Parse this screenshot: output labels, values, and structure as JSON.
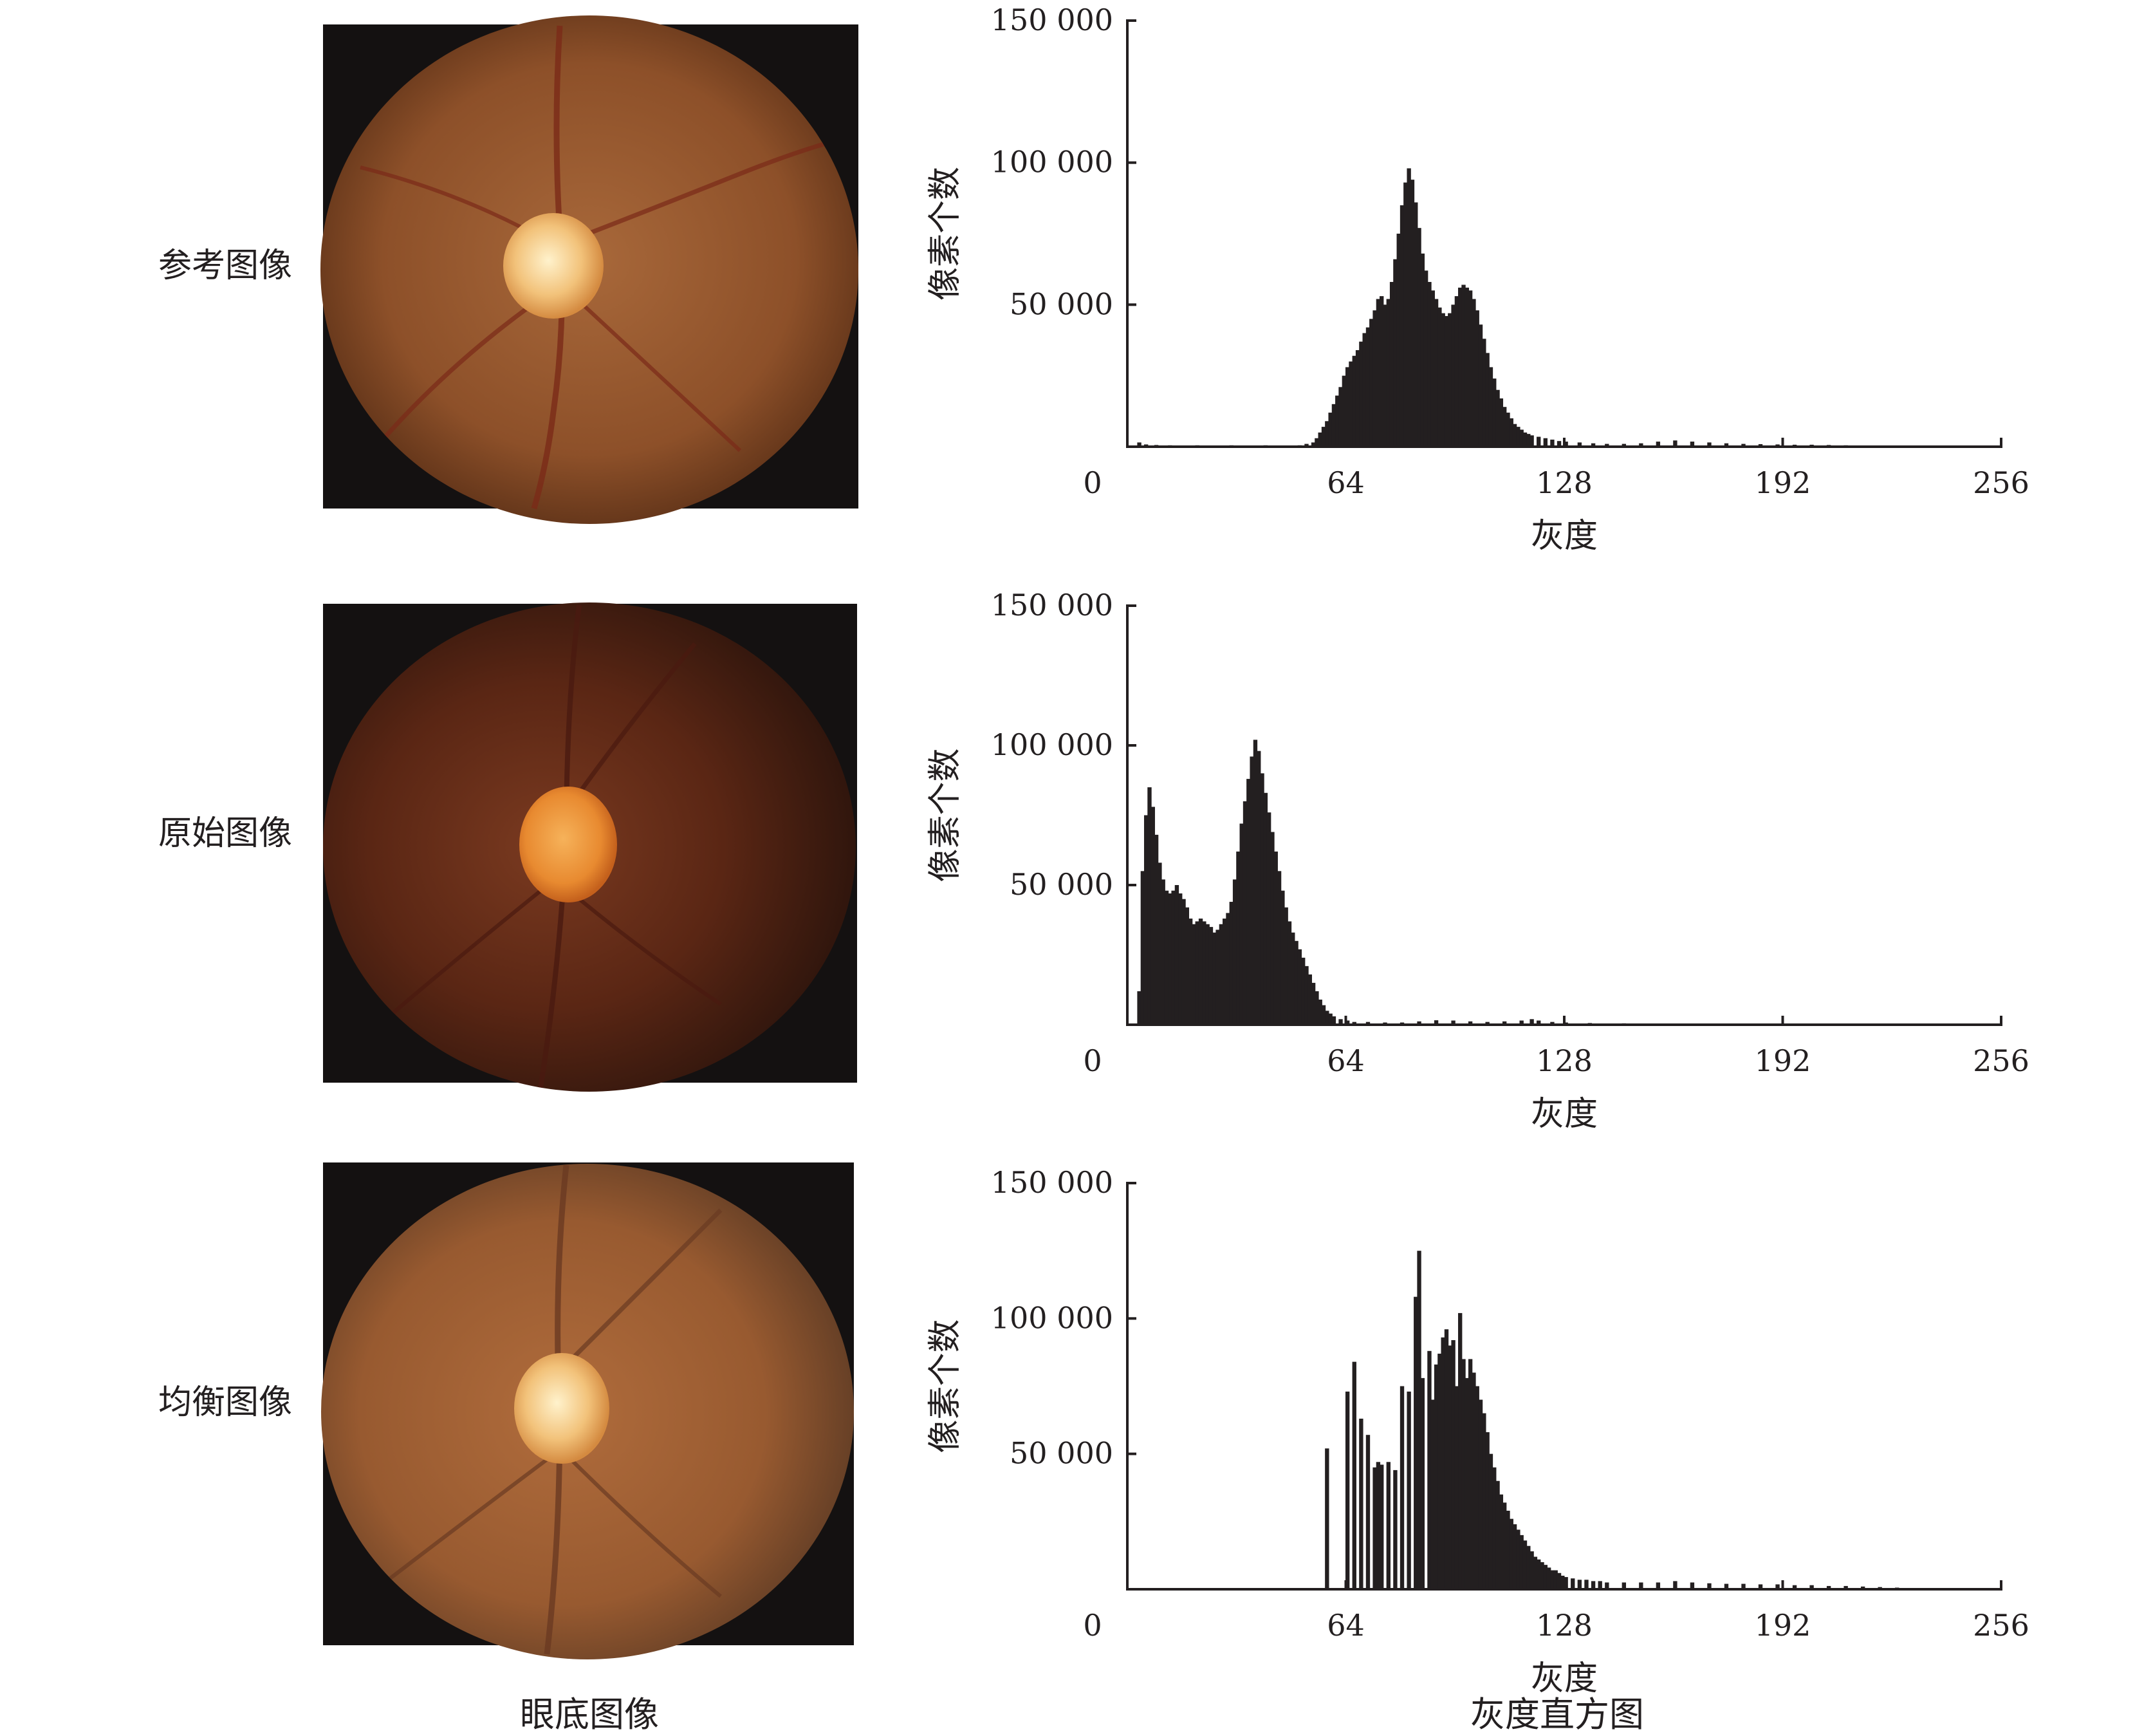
{
  "rows": [
    {
      "label": "参考图像"
    },
    {
      "label": "原始图像"
    },
    {
      "label": "均衡图像"
    }
  ],
  "footer": {
    "left": "眼底图像",
    "right": "灰度直方图"
  },
  "axes": {
    "xlabel": "灰度",
    "ylabel": "像素个数",
    "x_ticks": [
      "0",
      "64",
      "128",
      "192",
      "256"
    ],
    "y_ticks": [
      "50 000",
      "100 000",
      "150 000"
    ]
  },
  "colors": {
    "bar": "#231f20",
    "fundus_background": "#141111",
    "fundus_reference": "#9a5a2c",
    "fundus_original": "#6a2f1a",
    "fundus_equalized": "#a46236",
    "optic_disc": "#f2c27a"
  },
  "chart_data": [
    {
      "type": "bar",
      "title": "",
      "xlabel": "灰度",
      "ylabel": "像素个数",
      "xlim": [
        0,
        256
      ],
      "ylim": [
        0,
        150000
      ],
      "bins": [
        [
          3,
          1500
        ],
        [
          5,
          800
        ],
        [
          8,
          600
        ],
        [
          12,
          500
        ],
        [
          20,
          500
        ],
        [
          30,
          500
        ],
        [
          40,
          500
        ],
        [
          50,
          500
        ],
        [
          52,
          1000
        ],
        [
          54,
          1500
        ],
        [
          55,
          3000
        ],
        [
          56,
          5000
        ],
        [
          57,
          7000
        ],
        [
          58,
          9000
        ],
        [
          59,
          12000
        ],
        [
          60,
          15000
        ],
        [
          61,
          18000
        ],
        [
          62,
          21000
        ],
        [
          63,
          25000
        ],
        [
          64,
          28000
        ],
        [
          65,
          30000
        ],
        [
          66,
          32000
        ],
        [
          67,
          34000
        ],
        [
          68,
          37000
        ],
        [
          69,
          40000
        ],
        [
          70,
          42000
        ],
        [
          71,
          45000
        ],
        [
          72,
          48000
        ],
        [
          73,
          52000
        ],
        [
          74,
          53000
        ],
        [
          75,
          50000
        ],
        [
          76,
          52000
        ],
        [
          77,
          58000
        ],
        [
          78,
          66000
        ],
        [
          79,
          75000
        ],
        [
          80,
          85000
        ],
        [
          81,
          93000
        ],
        [
          82,
          98000
        ],
        [
          83,
          94000
        ],
        [
          84,
          86000
        ],
        [
          85,
          77000
        ],
        [
          86,
          68000
        ],
        [
          87,
          62000
        ],
        [
          88,
          58000
        ],
        [
          89,
          55000
        ],
        [
          90,
          52000
        ],
        [
          91,
          49000
        ],
        [
          92,
          47000
        ],
        [
          93,
          46000
        ],
        [
          94,
          47000
        ],
        [
          95,
          50000
        ],
        [
          96,
          53000
        ],
        [
          97,
          56000
        ],
        [
          98,
          57000
        ],
        [
          99,
          56000
        ],
        [
          100,
          55000
        ],
        [
          101,
          52000
        ],
        [
          102,
          48000
        ],
        [
          103,
          43000
        ],
        [
          104,
          38000
        ],
        [
          105,
          33000
        ],
        [
          106,
          28000
        ],
        [
          107,
          24000
        ],
        [
          108,
          20000
        ],
        [
          109,
          17000
        ],
        [
          110,
          14000
        ],
        [
          111,
          12000
        ],
        [
          112,
          10000
        ],
        [
          113,
          8000
        ],
        [
          114,
          7000
        ],
        [
          115,
          6000
        ],
        [
          116,
          5000
        ],
        [
          117,
          4500
        ],
        [
          118,
          4000
        ],
        [
          120,
          3500
        ],
        [
          122,
          3000
        ],
        [
          124,
          2500
        ],
        [
          126,
          2000
        ],
        [
          128,
          1800
        ],
        [
          132,
          1500
        ],
        [
          136,
          1200
        ],
        [
          140,
          1000
        ],
        [
          145,
          1000
        ],
        [
          150,
          1200
        ],
        [
          155,
          1800
        ],
        [
          160,
          2200
        ],
        [
          165,
          1800
        ],
        [
          170,
          1500
        ],
        [
          175,
          1200
        ],
        [
          180,
          1000
        ],
        [
          185,
          900
        ],
        [
          190,
          800
        ],
        [
          195,
          700
        ],
        [
          200,
          700
        ],
        [
          205,
          600
        ],
        [
          210,
          500
        ],
        [
          215,
          400
        ],
        [
          220,
          300
        ],
        [
          230,
          200
        ],
        [
          240,
          100
        ]
      ]
    },
    {
      "type": "bar",
      "title": "",
      "xlabel": "灰度",
      "ylabel": "像素个数",
      "xlim": [
        0,
        256
      ],
      "ylim": [
        0,
        150000
      ],
      "bins": [
        [
          3,
          12000
        ],
        [
          4,
          55000
        ],
        [
          5,
          75000
        ],
        [
          6,
          85000
        ],
        [
          7,
          78000
        ],
        [
          8,
          68000
        ],
        [
          9,
          58000
        ],
        [
          10,
          52000
        ],
        [
          11,
          48000
        ],
        [
          12,
          47000
        ],
        [
          13,
          48000
        ],
        [
          14,
          50000
        ],
        [
          15,
          47000
        ],
        [
          16,
          45000
        ],
        [
          17,
          42000
        ],
        [
          18,
          38000
        ],
        [
          19,
          36000
        ],
        [
          20,
          37000
        ],
        [
          21,
          38000
        ],
        [
          22,
          37000
        ],
        [
          23,
          36000
        ],
        [
          24,
          35000
        ],
        [
          25,
          33000
        ],
        [
          26,
          34000
        ],
        [
          27,
          36000
        ],
        [
          28,
          38000
        ],
        [
          29,
          40000
        ],
        [
          30,
          44000
        ],
        [
          31,
          52000
        ],
        [
          32,
          62000
        ],
        [
          33,
          72000
        ],
        [
          34,
          80000
        ],
        [
          35,
          88000
        ],
        [
          36,
          96000
        ],
        [
          37,
          102000
        ],
        [
          38,
          98000
        ],
        [
          39,
          90000
        ],
        [
          40,
          83000
        ],
        [
          41,
          76000
        ],
        [
          42,
          69000
        ],
        [
          43,
          62000
        ],
        [
          44,
          55000
        ],
        [
          45,
          48000
        ],
        [
          46,
          42000
        ],
        [
          47,
          37000
        ],
        [
          48,
          33000
        ],
        [
          49,
          30000
        ],
        [
          50,
          27000
        ],
        [
          51,
          24000
        ],
        [
          52,
          21000
        ],
        [
          53,
          18000
        ],
        [
          54,
          15000
        ],
        [
          55,
          12000
        ],
        [
          56,
          9000
        ],
        [
          57,
          7000
        ],
        [
          58,
          5000
        ],
        [
          59,
          4000
        ],
        [
          60,
          3000
        ],
        [
          62,
          2000
        ],
        [
          64,
          1500
        ],
        [
          66,
          1000
        ],
        [
          70,
          1000
        ],
        [
          75,
          800
        ],
        [
          80,
          800
        ],
        [
          85,
          1200
        ],
        [
          90,
          1600
        ],
        [
          95,
          1500
        ],
        [
          100,
          1200
        ],
        [
          105,
          1000
        ],
        [
          110,
          1200
        ],
        [
          115,
          1500
        ],
        [
          118,
          2000
        ],
        [
          120,
          1500
        ],
        [
          124,
          1000
        ],
        [
          128,
          800
        ],
        [
          135,
          600
        ],
        [
          145,
          500
        ],
        [
          155,
          400
        ],
        [
          165,
          300
        ],
        [
          175,
          300
        ],
        [
          190,
          200
        ],
        [
          210,
          150
        ],
        [
          230,
          100
        ],
        [
          250,
          100
        ]
      ]
    },
    {
      "type": "bar",
      "title": "",
      "xlabel": "灰度",
      "ylabel": "像素个数",
      "xlim": [
        0,
        256
      ],
      "ylim": [
        0,
        150000
      ],
      "bins": [
        [
          58,
          52000
        ],
        [
          64,
          73000
        ],
        [
          66,
          84000
        ],
        [
          68,
          63000
        ],
        [
          70,
          57000
        ],
        [
          72,
          45000
        ],
        [
          73,
          47000
        ],
        [
          74,
          46000
        ],
        [
          76,
          47000
        ],
        [
          78,
          44000
        ],
        [
          80,
          75000
        ],
        [
          82,
          73000
        ],
        [
          84,
          108000
        ],
        [
          85,
          125000
        ],
        [
          86,
          78000
        ],
        [
          88,
          88000
        ],
        [
          89,
          70000
        ],
        [
          90,
          83000
        ],
        [
          91,
          87000
        ],
        [
          92,
          93000
        ],
        [
          93,
          96000
        ],
        [
          94,
          90000
        ],
        [
          95,
          92000
        ],
        [
          96,
          75000
        ],
        [
          97,
          102000
        ],
        [
          98,
          85000
        ],
        [
          99,
          78000
        ],
        [
          100,
          85000
        ],
        [
          101,
          80000
        ],
        [
          102,
          75000
        ],
        [
          103,
          70000
        ],
        [
          104,
          65000
        ],
        [
          105,
          58000
        ],
        [
          106,
          50000
        ],
        [
          107,
          45000
        ],
        [
          108,
          40000
        ],
        [
          109,
          35000
        ],
        [
          110,
          32000
        ],
        [
          111,
          29000
        ],
        [
          112,
          26000
        ],
        [
          113,
          24000
        ],
        [
          114,
          22000
        ],
        [
          115,
          20000
        ],
        [
          116,
          18000
        ],
        [
          117,
          16000
        ],
        [
          118,
          14000
        ],
        [
          119,
          12000
        ],
        [
          120,
          11000
        ],
        [
          121,
          10000
        ],
        [
          122,
          9000
        ],
        [
          123,
          8000
        ],
        [
          124,
          7000
        ],
        [
          125,
          7000
        ],
        [
          126,
          6000
        ],
        [
          127,
          5000
        ],
        [
          128,
          4500
        ],
        [
          130,
          4000
        ],
        [
          132,
          3500
        ],
        [
          134,
          3500
        ],
        [
          136,
          3000
        ],
        [
          138,
          3000
        ],
        [
          140,
          2500
        ],
        [
          145,
          2500
        ],
        [
          150,
          2500
        ],
        [
          155,
          2500
        ],
        [
          160,
          3000
        ],
        [
          165,
          2500
        ],
        [
          170,
          2200
        ],
        [
          175,
          2000
        ],
        [
          180,
          2000
        ],
        [
          185,
          1800
        ],
        [
          190,
          1800
        ],
        [
          195,
          1500
        ],
        [
          200,
          1500
        ],
        [
          205,
          1200
        ],
        [
          210,
          1200
        ],
        [
          215,
          1000
        ],
        [
          220,
          800
        ],
        [
          225,
          600
        ],
        [
          230,
          400
        ],
        [
          240,
          200
        ],
        [
          250,
          100
        ]
      ]
    }
  ]
}
